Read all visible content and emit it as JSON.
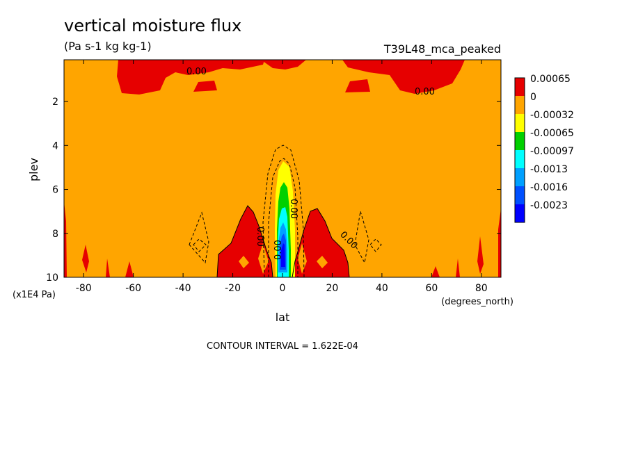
{
  "title": "vertical moisture flux",
  "units": "(Pa s-1 kg kg-1)",
  "run_label": "T39L48_mca_peaked",
  "contour_interval": "CONTOUR INTERVAL = 1.622E-04",
  "chart_data": {
    "type": "heatmap",
    "xlabel": "lat",
    "xunits": "(degrees_north)",
    "ylabel": "plev",
    "yunits": "(x1E4 Pa)",
    "xlim": [
      -87.9,
      87.9
    ],
    "ylim": [
      10,
      0.1
    ],
    "x_ticks": [
      "-80",
      "-60",
      "-40",
      "-20",
      "0",
      "20",
      "40",
      "60",
      "80"
    ],
    "x_tick_values": [
      -80,
      -60,
      -40,
      -20,
      0,
      20,
      40,
      60,
      80
    ],
    "y_ticks": [
      "2",
      "4",
      "6",
      "8",
      "10"
    ],
    "y_tick_values": [
      2,
      4,
      6,
      8,
      10
    ],
    "contour_labels": [
      "0.00",
      "0.00",
      "0.00",
      "0.00",
      "0.00",
      "0.00"
    ],
    "legend": [
      {
        "label": "0.00065",
        "color": "#e60000"
      },
      {
        "label": "0",
        "color": "#ffa500"
      },
      {
        "label": "-0.00032",
        "color": "#ffff00"
      },
      {
        "label": "-0.00065",
        "color": "#00d000"
      },
      {
        "label": "-0.00097",
        "color": "#00ffff"
      },
      {
        "label": "-0.0013",
        "color": "#00a0ff"
      },
      {
        "label": "-0.0016",
        "color": "#0050ff"
      },
      {
        "label": "-0.0023",
        "color": "#0000ff"
      }
    ],
    "background_color": "#ffa500",
    "positive_color": "#e60000"
  }
}
